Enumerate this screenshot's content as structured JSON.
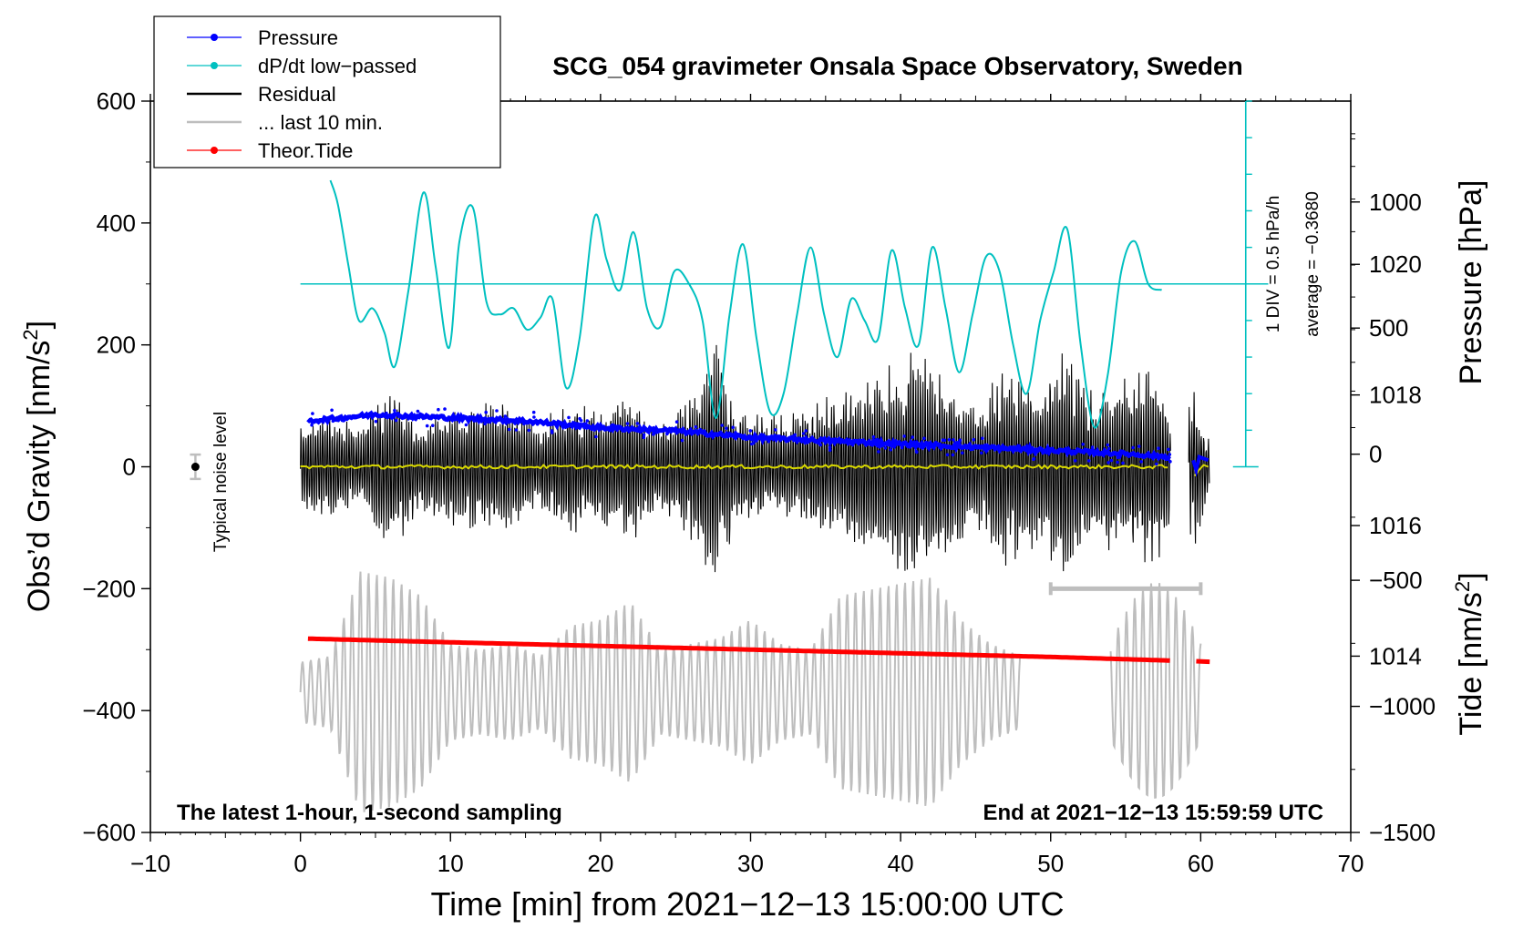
{
  "chart_data": {
    "type": "line",
    "title": "SCG_054 gravimeter Onsala Space Observatory, Sweden",
    "xlabel": "Time [min] from 2021−12−13 15:00:00 UTC",
    "ylabel_main": "Obs’d Gravity [nm/s",
    "ylabel_main_sup": "2",
    "ylabel_main_close": "]",
    "ylabel_pressure": "Pressure [hPa]",
    "ylabel_tide": "Tide [nm/s",
    "ylabel_tide_sup": "2",
    "ylabel_tide_close": "]",
    "xlim": [
      -10,
      70
    ],
    "ylim": [
      -600,
      600
    ],
    "x_ticks": [
      {
        "v": -10,
        "label": "−10"
      },
      {
        "v": 0,
        "label": "0"
      },
      {
        "v": 10,
        "label": "10"
      },
      {
        "v": 20,
        "label": "20"
      },
      {
        "v": 30,
        "label": "30"
      },
      {
        "v": 40,
        "label": "40"
      },
      {
        "v": 50,
        "label": "50"
      },
      {
        "v": 60,
        "label": "60"
      },
      {
        "v": 70,
        "label": "70"
      }
    ],
    "y_ticks": [
      {
        "v": 600,
        "label": "600"
      },
      {
        "v": 400,
        "label": "400"
      },
      {
        "v": 200,
        "label": "200"
      },
      {
        "v": 0,
        "label": "0"
      },
      {
        "v": -200,
        "label": "−200"
      },
      {
        "v": -400,
        "label": "−400"
      },
      {
        "v": -600,
        "label": "−600"
      }
    ],
    "pressure_axis": {
      "range": [
        1011.3,
        1022.5
      ],
      "ticks": [
        {
          "v": 1020,
          "label": "1020"
        },
        {
          "v": 1018,
          "label": "1018"
        },
        {
          "v": 1016,
          "label": "1016"
        },
        {
          "v": 1014,
          "label": "1014"
        }
      ]
    },
    "tide_axis": {
      "range": [
        -1500,
        1400
      ],
      "ticks": [
        {
          "v": 1000,
          "label": "1000"
        },
        {
          "v": 500,
          "label": "500"
        },
        {
          "v": 0,
          "label": "0"
        },
        {
          "v": -500,
          "label": "−500"
        },
        {
          "v": -1000,
          "label": "−1000"
        },
        {
          "v": -1500,
          "label": "−1500"
        }
      ]
    },
    "dpdt_scale": {
      "label": "1 DIV = 0.5 hPa/h",
      "average_label": "average = −0.3680",
      "zero_y": 300,
      "div_y": 60,
      "x": 63,
      "y_top": 600,
      "y_bottom": 0
    },
    "noise": {
      "label": "Typical noise level",
      "x": -7,
      "y": 0,
      "err": 20
    },
    "scale_bar": {
      "x_start": 50,
      "x_end": 60,
      "y": -200
    },
    "bottom_left_note": "The latest 1‑hour, 1‑second sampling",
    "bottom_right_note": "End at 2021−12−13 15:59:59 UTC",
    "legend": [
      {
        "name": "Pressure",
        "color": "#0000ff",
        "marker": true
      },
      {
        "name": "dP/dt low−passed",
        "color": "#00c0c0",
        "marker": true
      },
      {
        "name": "Residual",
        "color": "#000000",
        "marker": false
      },
      {
        "name": "... last 10 min.",
        "color": "#bebebe",
        "marker": false
      },
      {
        "name": "Theor.Tide",
        "color": "#ff0000",
        "marker": true
      }
    ],
    "series": [
      {
        "name": "Pressure",
        "color": "#0000ff",
        "axis": "pressure",
        "x": [
          0.5,
          5,
          10,
          15,
          20,
          25,
          30,
          35,
          40,
          45,
          50,
          55,
          58,
          59.5,
          60.5
        ],
        "values": [
          1017.6,
          1017.7,
          1017.65,
          1017.6,
          1017.5,
          1017.45,
          1017.35,
          1017.3,
          1017.25,
          1017.2,
          1017.15,
          1017.1,
          1017.05,
          1016.9,
          1017.0
        ]
      },
      {
        "name": "dP/dt low−passed",
        "color": "#00c0c0",
        "axis": "main",
        "x": [
          2,
          2.5,
          3.2,
          3.9,
          4.8,
          5.6,
          6.3,
          7.2,
          8.2,
          9.0,
          9.9,
          10.6,
          11.5,
          12.4,
          13.3,
          14.2,
          15.1,
          16.0,
          16.8,
          17.7,
          18.6,
          19.6,
          20.4,
          21.3,
          22.2,
          23.1,
          24.0,
          24.9,
          25.9,
          26.8,
          27.7,
          28.6,
          29.5,
          30.4,
          31.3,
          32.2,
          33.1,
          34.0,
          34.9,
          35.8,
          36.7,
          37.6,
          38.5,
          39.4,
          40.3,
          41.2,
          42.1,
          43.0,
          43.9,
          44.8,
          45.7,
          46.6,
          47.5,
          48.4,
          49.3,
          50.2,
          51.1,
          52.0,
          52.9,
          53.8,
          54.7,
          55.6,
          56.5,
          57.4
        ],
        "values": [
          470,
          430,
          330,
          240,
          260,
          220,
          165,
          290,
          450,
          330,
          195,
          370,
          425,
          270,
          250,
          260,
          225,
          245,
          275,
          130,
          210,
          410,
          340,
          290,
          385,
          260,
          230,
          320,
          300,
          240,
          80,
          250,
          365,
          210,
          90,
          120,
          250,
          360,
          250,
          180,
          275,
          240,
          210,
          355,
          260,
          200,
          360,
          260,
          155,
          250,
          345,
          320,
          200,
          120,
          240,
          320,
          390,
          200,
          65,
          150,
          320,
          370,
          300,
          290
        ]
      },
      {
        "name": "Residual",
        "color": "#000000",
        "axis": "main",
        "x": [
          0,
          2,
          4,
          6,
          8,
          10,
          12,
          14,
          16,
          18,
          20,
          22,
          24,
          26,
          27.5,
          29,
          31,
          33,
          35,
          37,
          39,
          41,
          43,
          45,
          47,
          49,
          51,
          53,
          55,
          57,
          58,
          59.5,
          60.5
        ],
        "envelope": [
          70,
          90,
          60,
          140,
          70,
          90,
          110,
          100,
          70,
          110,
          90,
          120,
          70,
          120,
          210,
          100,
          80,
          90,
          110,
          130,
          150,
          180,
          160,
          100,
          170,
          130,
          190,
          110,
          150,
          170,
          110,
          140,
          50
        ]
      },
      {
        "name": "... last 10 min.",
        "color": "#bebebe",
        "axis": "main",
        "offset": -370,
        "x": [
          0,
          2,
          4,
          6,
          8,
          10,
          12,
          14,
          16,
          18,
          20,
          22,
          24,
          26,
          28,
          30,
          32,
          34,
          36,
          38,
          40,
          42,
          44,
          46,
          48
        ],
        "envelope": [
          50,
          60,
          200,
          190,
          160,
          80,
          70,
          80,
          60,
          110,
          120,
          150,
          70,
          80,
          90,
          120,
          80,
          70,
          160,
          170,
          180,
          190,
          120,
          80,
          60
        ]
      },
      {
        "name": "Theor.Tide",
        "color": "#ff0000",
        "axis": "main",
        "x": [
          0.5,
          10,
          20,
          30,
          40,
          50,
          58,
          59.7,
          60.5
        ],
        "values": [
          -282,
          -288,
          -294,
          -300,
          -306,
          -312,
          -318,
          -320,
          -320
        ]
      }
    ]
  }
}
